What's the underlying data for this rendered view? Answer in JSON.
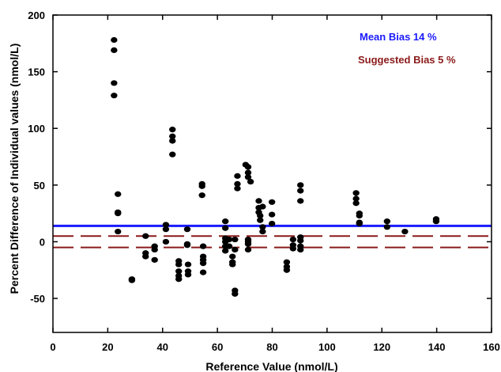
{
  "chart_data": {
    "type": "scatter",
    "title": "",
    "xlabel": "Reference Value (nmol/L)",
    "ylabel": "Percent Difference of Individual values  (nmol/L)",
    "xlim": [
      0,
      160
    ],
    "ylim": [
      -80,
      200
    ],
    "xticks": [
      0,
      20,
      40,
      60,
      80,
      100,
      120,
      140,
      160
    ],
    "yticks": [
      -50,
      0,
      50,
      100,
      150,
      200
    ],
    "grid": false,
    "legend_placement": "top-right",
    "legend": [
      {
        "label": "Mean Bias 14 %",
        "color": "#1a1aff"
      },
      {
        "label": "Suggested Bias 5 %",
        "color": "#8b1a1a"
      }
    ],
    "reference_lines": [
      {
        "name": "Mean Bias 14 %",
        "y": 14,
        "style": "solid",
        "color": "#1a1aff"
      },
      {
        "name": "Suggested Bias 5 %",
        "y": 5,
        "style": "dashed",
        "color": "#8b1a1a"
      },
      {
        "name": "Suggested Bias 5 %",
        "y": -5,
        "style": "dashed",
        "color": "#8b1a1a"
      }
    ],
    "marker_color": "#000000",
    "points": [
      [
        22.3,
        178
      ],
      [
        22.3,
        169
      ],
      [
        22.3,
        140
      ],
      [
        22.3,
        129
      ],
      [
        23.7,
        42
      ],
      [
        23.7,
        26
      ],
      [
        23.7,
        25
      ],
      [
        23.7,
        9
      ],
      [
        28.8,
        -33
      ],
      [
        28.8,
        -34
      ],
      [
        33.8,
        5
      ],
      [
        33.8,
        -10
      ],
      [
        33.8,
        -13
      ],
      [
        37.1,
        -4
      ],
      [
        37.1,
        -7
      ],
      [
        37.1,
        -16
      ],
      [
        41.2,
        15
      ],
      [
        41.2,
        11
      ],
      [
        41.2,
        0
      ],
      [
        43.6,
        99
      ],
      [
        43.6,
        93
      ],
      [
        43.6,
        89
      ],
      [
        43.6,
        77
      ],
      [
        45.9,
        -17
      ],
      [
        45.9,
        -20
      ],
      [
        45.9,
        -26
      ],
      [
        45.9,
        -30
      ],
      [
        45.9,
        -33
      ],
      [
        49.0,
        11
      ],
      [
        49.0,
        -2
      ],
      [
        49.0,
        -3
      ],
      [
        49.3,
        -20
      ],
      [
        49.3,
        -26
      ],
      [
        49.3,
        -29
      ],
      [
        54.4,
        51
      ],
      [
        54.4,
        49
      ],
      [
        54.4,
        41
      ],
      [
        54.8,
        -4
      ],
      [
        54.8,
        -13
      ],
      [
        54.8,
        -16
      ],
      [
        54.8,
        -19
      ],
      [
        54.8,
        -27
      ],
      [
        62.9,
        18
      ],
      [
        62.9,
        12
      ],
      [
        62.9,
        3
      ],
      [
        62.9,
        0
      ],
      [
        62.9,
        -4
      ],
      [
        62.9,
        -8
      ],
      [
        64.3,
        2
      ],
      [
        64.3,
        -4
      ],
      [
        65.5,
        -13
      ],
      [
        65.5,
        -18
      ],
      [
        65.5,
        -20
      ],
      [
        66.4,
        2
      ],
      [
        66.4,
        -7
      ],
      [
        66.4,
        -43
      ],
      [
        66.4,
        -46
      ],
      [
        67.3,
        58
      ],
      [
        67.3,
        51
      ],
      [
        67.3,
        47
      ],
      [
        70.3,
        68
      ],
      [
        71.2,
        66
      ],
      [
        71.2,
        61
      ],
      [
        71.2,
        57
      ],
      [
        72.1,
        53
      ],
      [
        71.2,
        2
      ],
      [
        71.2,
        0
      ],
      [
        71.2,
        -2
      ],
      [
        71.2,
        -7
      ],
      [
        75.1,
        36
      ],
      [
        75.1,
        30
      ],
      [
        75.1,
        26
      ],
      [
        75.6,
        23
      ],
      [
        75.6,
        19
      ],
      [
        76.5,
        31
      ],
      [
        76.5,
        13
      ],
      [
        76.5,
        9
      ],
      [
        79.9,
        35
      ],
      [
        79.9,
        24
      ],
      [
        79.9,
        16
      ],
      [
        85.3,
        -18
      ],
      [
        85.3,
        -22
      ],
      [
        85.3,
        -25
      ],
      [
        87.6,
        2
      ],
      [
        87.6,
        -3
      ],
      [
        87.6,
        -6
      ],
      [
        90.3,
        50
      ],
      [
        90.3,
        45
      ],
      [
        90.3,
        36
      ],
      [
        90.3,
        4
      ],
      [
        90.3,
        1
      ],
      [
        90.3,
        -4
      ],
      [
        90.3,
        -7
      ],
      [
        110.6,
        43
      ],
      [
        110.6,
        38
      ],
      [
        110.6,
        34
      ],
      [
        111.8,
        25
      ],
      [
        111.8,
        23
      ],
      [
        111.8,
        17
      ],
      [
        111.8,
        16
      ],
      [
        121.9,
        18
      ],
      [
        121.9,
        13
      ],
      [
        128.4,
        9
      ],
      [
        139.8,
        20
      ],
      [
        139.8,
        18
      ]
    ]
  }
}
